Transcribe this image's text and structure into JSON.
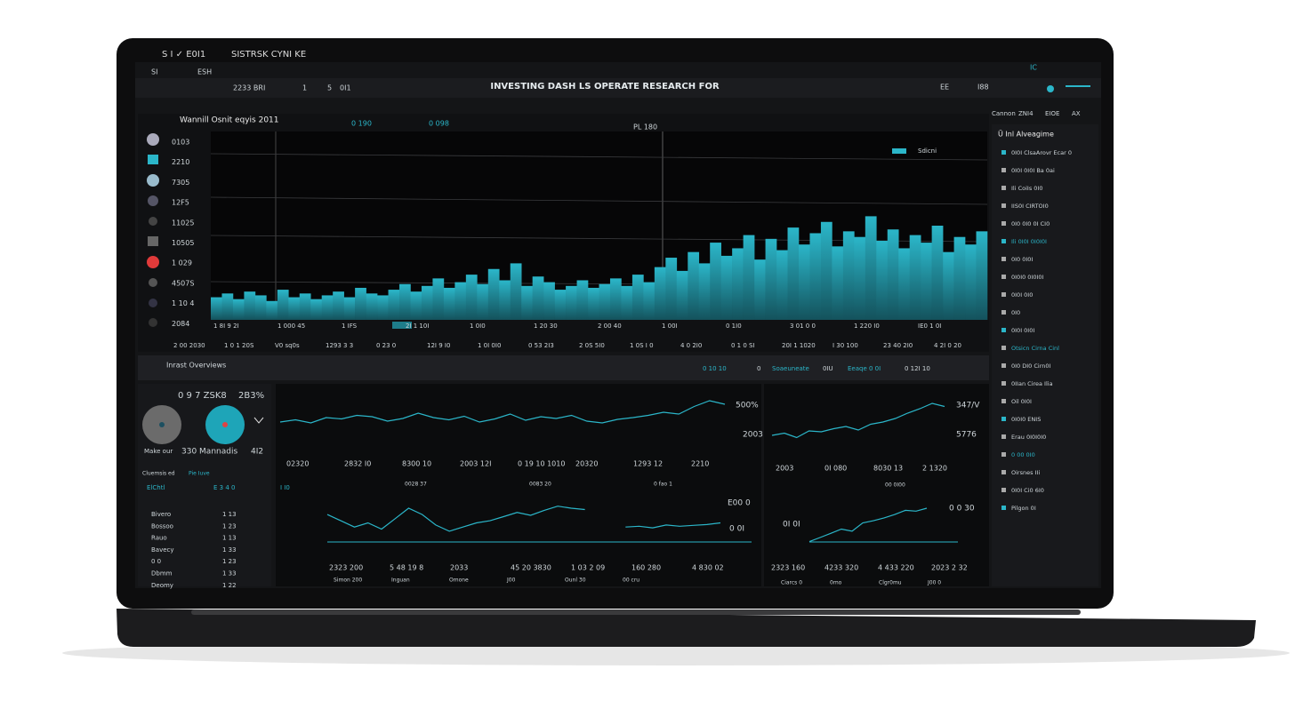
{
  "device": {
    "bezel_title": "S I ✓ E0I1",
    "app_name": "SISTRSK CYNI KE"
  },
  "header": {
    "title": "INVESTING DASH LS OPERATE RESEARCH FOR",
    "left_items": [
      "SI",
      "ESH",
      "2233 BRI",
      "1",
      "5",
      "0I1"
    ],
    "right_items": [
      "EE",
      "I88"
    ],
    "status": "IC",
    "sub_right": [
      "Cannon",
      "ZNI4",
      "EIOE",
      "AX"
    ]
  },
  "main_chart": {
    "title": "Wannill Osnit eqyis 2011",
    "legend": [
      "0 190",
      "0 098"
    ],
    "marker_label": "PL 180",
    "badge": "Sdicni",
    "ylim": [
      0,
      100
    ],
    "ylabels": [
      "0103",
      "2210",
      "7305",
      "12F5",
      "11025",
      "10505",
      "1 029",
      "4507S",
      "1 10 4",
      "2084"
    ],
    "xlabels": [
      "1 8I 9 2I",
      "1 000 45",
      "1 IFS",
      "2I 1 10I",
      "1 0I0",
      "1 20 30",
      "2 00 40",
      "1 00I",
      "0 1I0",
      "3 01 0 0",
      "1 220 I0",
      "IE0 1 0I"
    ],
    "dates": [
      "2 00 2030",
      "1 0 1 20S",
      "V0 sq0s",
      "1293 3 3",
      "0 23 0",
      "12I 9 I0",
      "1 0I 0I0",
      "0 53 2I3",
      "2 0S 5I0",
      "1 0S I 0",
      "4 0 2I0",
      "0 1 0 SI",
      "20I 1 1020",
      "I 30 100",
      "23 40 2I0",
      "4 2I 0 20"
    ],
    "values": [
      12,
      14,
      11,
      15,
      13,
      10,
      16,
      12,
      14,
      11,
      13,
      15,
      12,
      17,
      14,
      13,
      16,
      19,
      15,
      18,
      22,
      17,
      20,
      24,
      19,
      27,
      21,
      30,
      18,
      23,
      20,
      16,
      18,
      21,
      17,
      19,
      22,
      18,
      24,
      20,
      28,
      33,
      26,
      36,
      30,
      41,
      34,
      38,
      45,
      32,
      43,
      37,
      49,
      40,
      46,
      52,
      39,
      47,
      44,
      55,
      42,
      48,
      38,
      45,
      41,
      50,
      36,
      44,
      40,
      47
    ]
  },
  "overview": {
    "title": "Inrast Overviews",
    "filters": [
      "0 10 10",
      "0",
      "Soaeuneate",
      "0IU",
      "Eeaqe 0 0I",
      "0 12I 10"
    ]
  },
  "gauges": {
    "headline": "0 9 7 ZSK8",
    "percent": "2B3%",
    "caption": "Make our",
    "value": "330 Mannadis",
    "extra": "4I2"
  },
  "table": {
    "tabs": [
      "Cluemsis ed",
      "Pie Iuve"
    ],
    "header": [
      "ElChtl",
      "E 3 4 0",
      "I I0"
    ],
    "rows": [
      [
        "Bivero",
        "1 13"
      ],
      [
        "Bossoo",
        "1 23"
      ],
      [
        "Rauo",
        "1 13"
      ],
      [
        "Bavecy",
        "1 33"
      ],
      [
        "0 0",
        "1 23"
      ],
      [
        "Dbmm",
        "1 33"
      ],
      [
        "Deomy",
        "1 22"
      ]
    ]
  },
  "line_charts": [
    {
      "ylim": [
        0,
        100
      ],
      "label": "500%",
      "sub_label": "2003",
      "values": [
        40,
        45,
        38,
        50,
        47,
        55,
        52,
        42,
        48,
        60,
        50,
        45,
        53,
        40,
        47,
        58,
        44,
        52,
        48,
        55,
        42,
        38,
        46,
        50,
        55,
        62,
        58,
        75,
        88,
        80
      ],
      "ticks": [
        "02320",
        "2832 I0",
        "8300 10",
        "2003 12I",
        "0 19 10 1010",
        "20320",
        "1293 12",
        "2210"
      ],
      "captions": [
        "0028 37",
        "0083 20",
        "0 fao 1"
      ]
    },
    {
      "ylim": [
        0,
        100
      ],
      "label": "347/V",
      "sub_label": "5776",
      "values": [
        20,
        25,
        15,
        30,
        28,
        35,
        40,
        32,
        45,
        50,
        58,
        70,
        80,
        92,
        85
      ],
      "ticks": [
        "2003",
        "0I 080",
        "8030 13",
        "2 1320"
      ],
      "captions": [
        "00 0I00"
      ]
    },
    {
      "ylim": [
        0,
        100
      ],
      "label": "E00 0",
      "sub_label": "0 0I",
      "values": [
        70,
        55,
        40,
        50,
        35,
        60,
        85,
        70,
        45,
        30,
        40,
        50,
        55,
        65,
        75,
        68,
        80,
        90,
        85,
        82,
        null,
        null,
        40,
        42,
        38,
        45,
        42,
        44,
        46,
        50
      ],
      "ticks": [
        "2323 200",
        "5 48 19 8",
        "2033",
        "45 20 3830",
        "1 03 2 09",
        "160 280",
        "4 830 02"
      ],
      "captions": [
        "Simon 200",
        "Inguan",
        "Omone",
        "J00",
        "Ounl 30",
        "00 cru"
      ]
    },
    {
      "ylim": [
        0,
        100
      ],
      "label": "0 0 30",
      "sub_label": "0I 0I",
      "values": [
        5,
        15,
        25,
        35,
        30,
        50,
        55,
        62,
        70,
        80,
        78,
        85
      ],
      "ticks": [
        "2323 160",
        "4233 320",
        "4 433 220",
        "2023 2 32"
      ],
      "captions": [
        "Ciarcs 0",
        "0mo",
        "Clgr0mu",
        "J00 0"
      ]
    }
  ],
  "sidebar": {
    "title": "Ü Inl Alveagime",
    "items": [
      "0I0I ClsaArovr Ecar 0",
      "0I0I 0I0I Ba 0ai",
      "Ili CoiIs 0I0",
      "IIS0I CIRTOI0",
      "0I0 0I0 0I CI0",
      "Ili 0I0I 0I0I0I",
      "0I0 0I0I",
      "0I0I0 0I0I0I",
      "0I0I 0I0",
      "0I0",
      "0I0I 0I0I",
      "Otsicn Cirna Cinl",
      "0I0 DI0 Cirn0I",
      "0IIan Cirea Ilia",
      "Oil 0I0I",
      "0I0I0 ENIS",
      "Erau 0I0I0I0",
      "0 00 0I0",
      "Oirsnes IIi",
      "0I0I Ci0 6I0",
      "Pilgon 0I"
    ]
  }
}
